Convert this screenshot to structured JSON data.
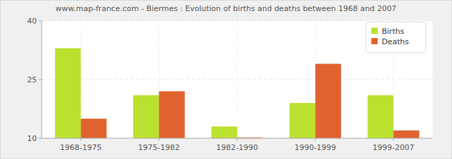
{
  "chart_data": {
    "type": "bar",
    "title": "www.map-france.com - Biermes : Evolution of births and deaths between 1968 and 2007",
    "categories": [
      "1968-1975",
      "1975-1982",
      "1982-1990",
      "1990-1999",
      "1999-2007"
    ],
    "series": [
      {
        "name": "Births",
        "color": "#bbe12f",
        "values": [
          33,
          21,
          13,
          19,
          21
        ]
      },
      {
        "name": "Deaths",
        "color": "#e0632f",
        "values": [
          15,
          22,
          10.2,
          29,
          12
        ]
      }
    ],
    "ylim": [
      10,
      40
    ],
    "yticks": [
      10,
      25,
      40
    ],
    "grid": true,
    "legend": "top-right"
  }
}
